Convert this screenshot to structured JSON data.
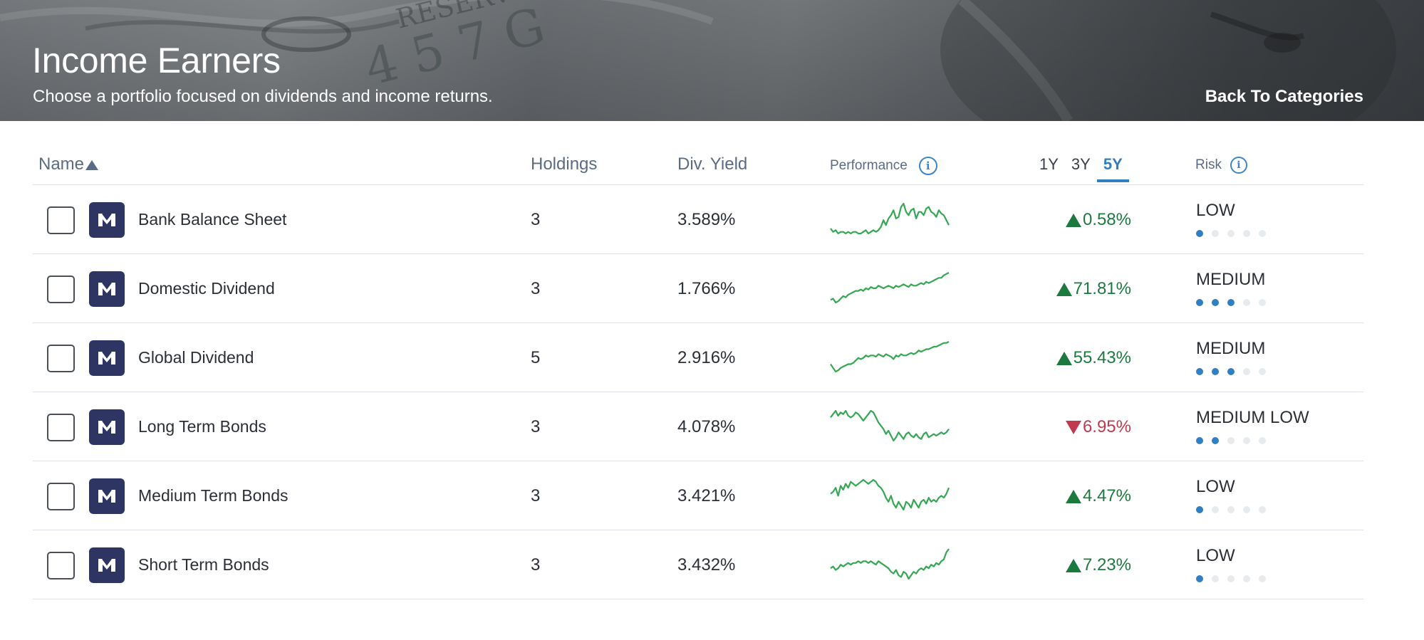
{
  "header": {
    "title": "Income Earners",
    "subtitle": "Choose a portfolio focused on dividends and income returns.",
    "back_link": "Back To Categories"
  },
  "columns": {
    "name": "Name",
    "holdings": "Holdings",
    "div_yield": "Div. Yield",
    "performance": "Performance",
    "risk": "Risk",
    "sort_icon": "sort-ascending-triangle",
    "info_icon": "info-circle"
  },
  "period_tabs": {
    "options": [
      "1Y",
      "3Y",
      "5Y"
    ],
    "selected": "5Y"
  },
  "colors": {
    "positive": "#1d7a3f",
    "negative": "#c1394e",
    "accent": "#2f7fc1",
    "logo_bg": "#2f3563",
    "sparkline": "#34a853"
  },
  "rows": [
    {
      "name": "Bank Balance Sheet",
      "holdings": "3",
      "div_yield": "3.589%",
      "change": "0.58%",
      "direction": "up",
      "risk_label": "LOW",
      "risk_level": 1,
      "sparkline": [
        42,
        40,
        41,
        39,
        40,
        40,
        39,
        40,
        39,
        40,
        40,
        39,
        39,
        40,
        41,
        39,
        40,
        41,
        40,
        41,
        43,
        47,
        44,
        48,
        50,
        53,
        48,
        49,
        55,
        57,
        52,
        50,
        53,
        54,
        48,
        52,
        52,
        50,
        54,
        55,
        52,
        51,
        49,
        53,
        51,
        50,
        47,
        44
      ]
    },
    {
      "name": "Domestic Dividend",
      "holdings": "3",
      "div_yield": "1.766%",
      "change": "71.81%",
      "direction": "up",
      "risk_label": "MEDIUM",
      "risk_level": 3,
      "sparkline": [
        5,
        6,
        3,
        4,
        6,
        8,
        7,
        9,
        10,
        11,
        12,
        12,
        13,
        12,
        14,
        13,
        15,
        14,
        14,
        16,
        15,
        14,
        15,
        16,
        15,
        14,
        16,
        15,
        16,
        17,
        16,
        15,
        17,
        16,
        16,
        17,
        18,
        17,
        19,
        18,
        19,
        20,
        21,
        22,
        22,
        24,
        25,
        26
      ]
    },
    {
      "name": "Global Dividend",
      "holdings": "5",
      "div_yield": "2.916%",
      "change": "55.43%",
      "direction": "up",
      "risk_label": "MEDIUM",
      "risk_level": 3,
      "sparkline": [
        10,
        7,
        4,
        5,
        7,
        8,
        9,
        10,
        10,
        11,
        13,
        15,
        14,
        15,
        17,
        16,
        17,
        17,
        16,
        18,
        17,
        16,
        18,
        17,
        16,
        14,
        17,
        16,
        18,
        17,
        17,
        18,
        19,
        18,
        19,
        21,
        20,
        21,
        22,
        22,
        23,
        24,
        24,
        25,
        26,
        27,
        27,
        28
      ]
    },
    {
      "name": "Long Term Bonds",
      "holdings": "3",
      "div_yield": "4.078%",
      "change": "6.95%",
      "direction": "down",
      "risk_label": "MEDIUM LOW",
      "risk_level": 2,
      "sparkline": [
        50,
        52,
        54,
        51,
        53,
        52,
        54,
        51,
        50,
        51,
        53,
        52,
        50,
        48,
        50,
        52,
        54,
        53,
        50,
        47,
        45,
        43,
        40,
        42,
        39,
        36,
        38,
        41,
        39,
        37,
        40,
        41,
        39,
        38,
        40,
        38,
        37,
        40,
        41,
        38,
        39,
        40,
        39,
        40,
        41,
        40,
        41,
        43
      ]
    },
    {
      "name": "Medium Term Bonds",
      "holdings": "3",
      "div_yield": "3.421%",
      "change": "4.47%",
      "direction": "up",
      "risk_label": "LOW",
      "risk_level": 1,
      "sparkline": [
        45,
        46,
        48,
        44,
        49,
        47,
        50,
        48,
        51,
        50,
        49,
        50,
        51,
        52,
        51,
        50,
        51,
        52,
        51,
        49,
        48,
        46,
        43,
        41,
        44,
        40,
        38,
        41,
        39,
        37,
        41,
        40,
        38,
        42,
        40,
        38,
        41,
        42,
        40,
        43,
        41,
        42,
        41,
        43,
        44,
        43,
        45,
        48
      ]
    },
    {
      "name": "Short Term Bonds",
      "holdings": "3",
      "div_yield": "3.432%",
      "change": "7.23%",
      "direction": "up",
      "risk_label": "LOW",
      "risk_level": 1,
      "sparkline": [
        40,
        41,
        39,
        40,
        42,
        41,
        42,
        43,
        42,
        43,
        43,
        44,
        43,
        44,
        44,
        43,
        44,
        43,
        42,
        44,
        43,
        42,
        41,
        40,
        38,
        37,
        39,
        36,
        35,
        38,
        37,
        34,
        36,
        38,
        37,
        39,
        40,
        39,
        41,
        40,
        42,
        41,
        43,
        42,
        44,
        45,
        49,
        51
      ]
    }
  ]
}
